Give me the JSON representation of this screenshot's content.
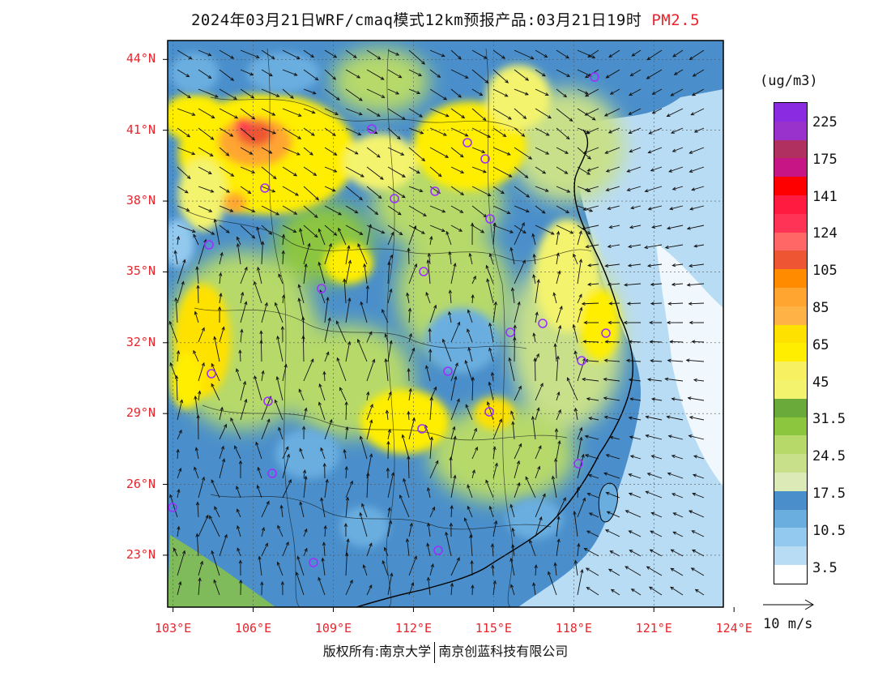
{
  "title": {
    "main": "2024年03月21日WRF/cmaq模式12km预报产品:03月21日19时",
    "variable": "PM2.5"
  },
  "map": {
    "lat_labels": [
      "44°N",
      "41°N",
      "38°N",
      "35°N",
      "32°N",
      "29°N",
      "26°N",
      "23°N"
    ],
    "lon_labels": [
      "103°E",
      "106°E",
      "109°E",
      "112°E",
      "115°E",
      "118°E",
      "121°E",
      "124°E"
    ],
    "lat_values": [
      44,
      41,
      38,
      35,
      32,
      29,
      26,
      23
    ],
    "lon_values": [
      103,
      106,
      109,
      112,
      115,
      118,
      121,
      124
    ],
    "lat_range": [
      20.8,
      44.8
    ],
    "lon_range": [
      102.8,
      123.6
    ],
    "fill_color_land_dominant": "#4a8fcb",
    "coast_color": "#000000",
    "station_color": "#9b30ff"
  },
  "legend": {
    "unit": "(ug/m3)",
    "colors": [
      "#8a2be2",
      "#9932cc",
      "#b03060",
      "#c71585",
      "#ff0000",
      "#ff1a40",
      "#ff3355",
      "#ff6666",
      "#ee5533",
      "#ff8c00",
      "#ffa530",
      "#ffb347",
      "#ffe100",
      "#ffee00",
      "#f7f060",
      "#f3f36d",
      "#6aaa3a",
      "#8cc63f",
      "#b6d96a",
      "#c8e08a",
      "#dceab8",
      "#4a8fcb",
      "#6aaee0",
      "#93c9ee",
      "#b9dcf5",
      "#ffffff"
    ],
    "labels": [
      "225",
      "175",
      "141",
      "124",
      "105",
      "85",
      "65",
      "45",
      "31.5",
      "24.5",
      "17.5",
      "10.5",
      "3.5"
    ]
  },
  "wind_reference": {
    "label": "10 m/s"
  },
  "footer": {
    "left": "版权所有:南京大学",
    "right": "南京创蓝科技有限公司"
  }
}
